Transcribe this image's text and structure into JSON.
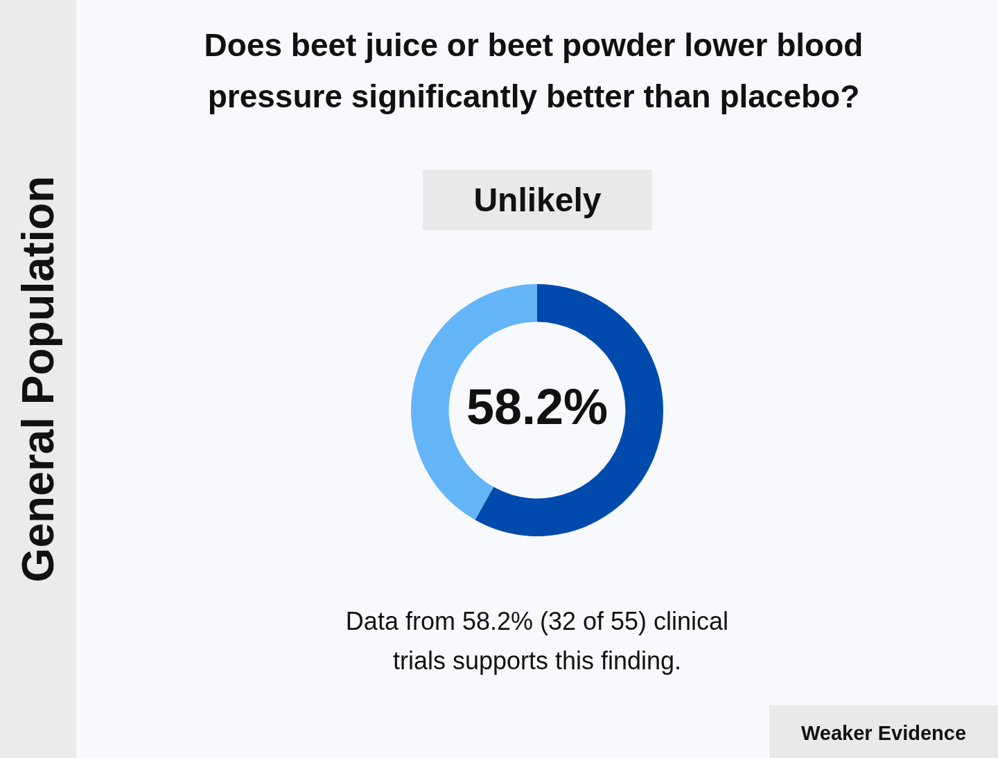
{
  "chart_data": {
    "type": "donut",
    "title": "Does beet juice or beet powder lower blood pressure significantly better than placebo?",
    "subtitle": "Unlikely",
    "categories": [
      null,
      null
    ],
    "values": [
      58.2,
      41.8
    ],
    "colors": [
      "#004aad",
      "#63b5f7"
    ],
    "value_labels": [
      "58.2%",
      null
    ],
    "legend": false,
    "annotations": [
      "General Population",
      "Data from 58.2% (32 of 55) clinical trials supports this finding.",
      "Weaker Evidence"
    ]
  }
}
